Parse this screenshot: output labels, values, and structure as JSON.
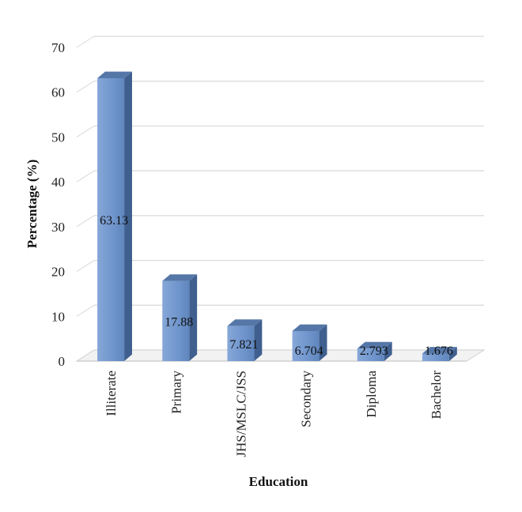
{
  "chart_data": {
    "type": "bar",
    "title": "",
    "xlabel": "Education",
    "ylabel": "Percentage (%)",
    "ylim": [
      0,
      70
    ],
    "yticks": [
      0,
      10,
      20,
      30,
      40,
      50,
      60,
      70
    ],
    "grid": true,
    "legend": "none",
    "style": "3d-column",
    "colors": {
      "bar_front": "#6f95cc",
      "bar_side": "#3f5f8f",
      "bar_top": "#5577a8",
      "grid": "#d9d9d9"
    },
    "categories": [
      "Illiterate",
      "Primary",
      "JHS/MSLC/JSS",
      "Secondary",
      "Diploma",
      "Bachelor"
    ],
    "values": [
      63.13,
      17.88,
      7.821,
      6.704,
      2.793,
      1.676
    ],
    "value_labels": [
      "63.13",
      "17.88",
      "7.821",
      "6.704",
      "2.793",
      "1.676"
    ]
  }
}
